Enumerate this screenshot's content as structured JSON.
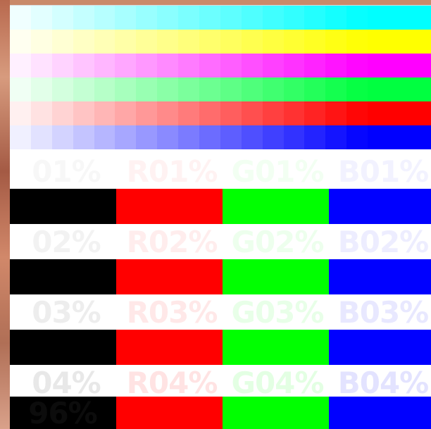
{
  "gradient_rows": [
    {
      "name": "cyan",
      "color": "#00ffff"
    },
    {
      "name": "yellow",
      "color": "#ffff00"
    },
    {
      "name": "magenta",
      "color": "#ff00ff"
    },
    {
      "name": "green",
      "color": "#00ff40"
    },
    {
      "name": "red",
      "color": "#ff0000"
    },
    {
      "name": "blue",
      "color": "#0000ff"
    }
  ],
  "bands": [
    {
      "level": "01",
      "labels": [
        "01%",
        "R01%",
        "G01%",
        "B01%"
      ]
    },
    {
      "level": "02",
      "labels": [
        "02%",
        "R02%",
        "G02%",
        "B02%"
      ]
    },
    {
      "level": "03",
      "labels": [
        "03%",
        "R03%",
        "G03%",
        "B03%"
      ]
    },
    {
      "level": "04",
      "labels": [
        "04%",
        "R04%",
        "G04%",
        "B04%"
      ]
    }
  ],
  "bottom_label": "96%",
  "dark_colors": [
    "#000000",
    "#ff0000",
    "#00ff00",
    "#0000ff"
  ]
}
